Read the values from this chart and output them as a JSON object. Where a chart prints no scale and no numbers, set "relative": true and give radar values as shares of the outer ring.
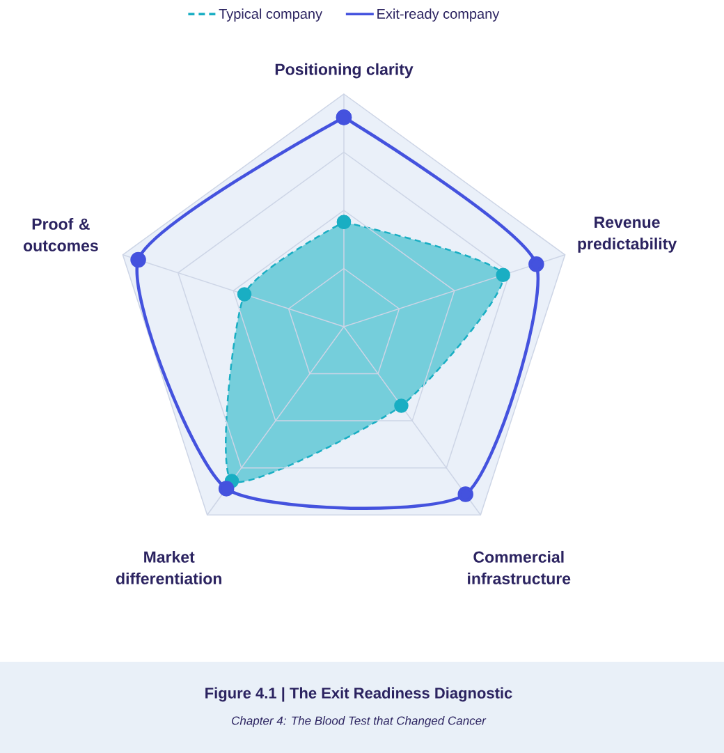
{
  "chart_data": {
    "type": "radar",
    "title": "Figure 4.1 | The Exit Readiness Diagnostic",
    "subtitle": "Chapter 4: The Blood Test that Changed Cancer",
    "categories": [
      "Positioning clarity",
      "Revenue predictability",
      "Commercial infrastructure",
      "Market differentiation",
      "Proof & outcomes"
    ],
    "relative": true,
    "grid": true,
    "legend": "top",
    "marker": "circle",
    "series": [
      {
        "name": "Typical company",
        "line_style": "dashed",
        "color": "#19aec3",
        "values": [
          0.45,
          0.72,
          0.42,
          0.82,
          0.45
        ]
      },
      {
        "name": "Exit-ready company",
        "line_style": "solid",
        "color": "#4452de",
        "values": [
          0.9,
          0.87,
          0.89,
          0.86,
          0.93
        ]
      }
    ]
  }
}
